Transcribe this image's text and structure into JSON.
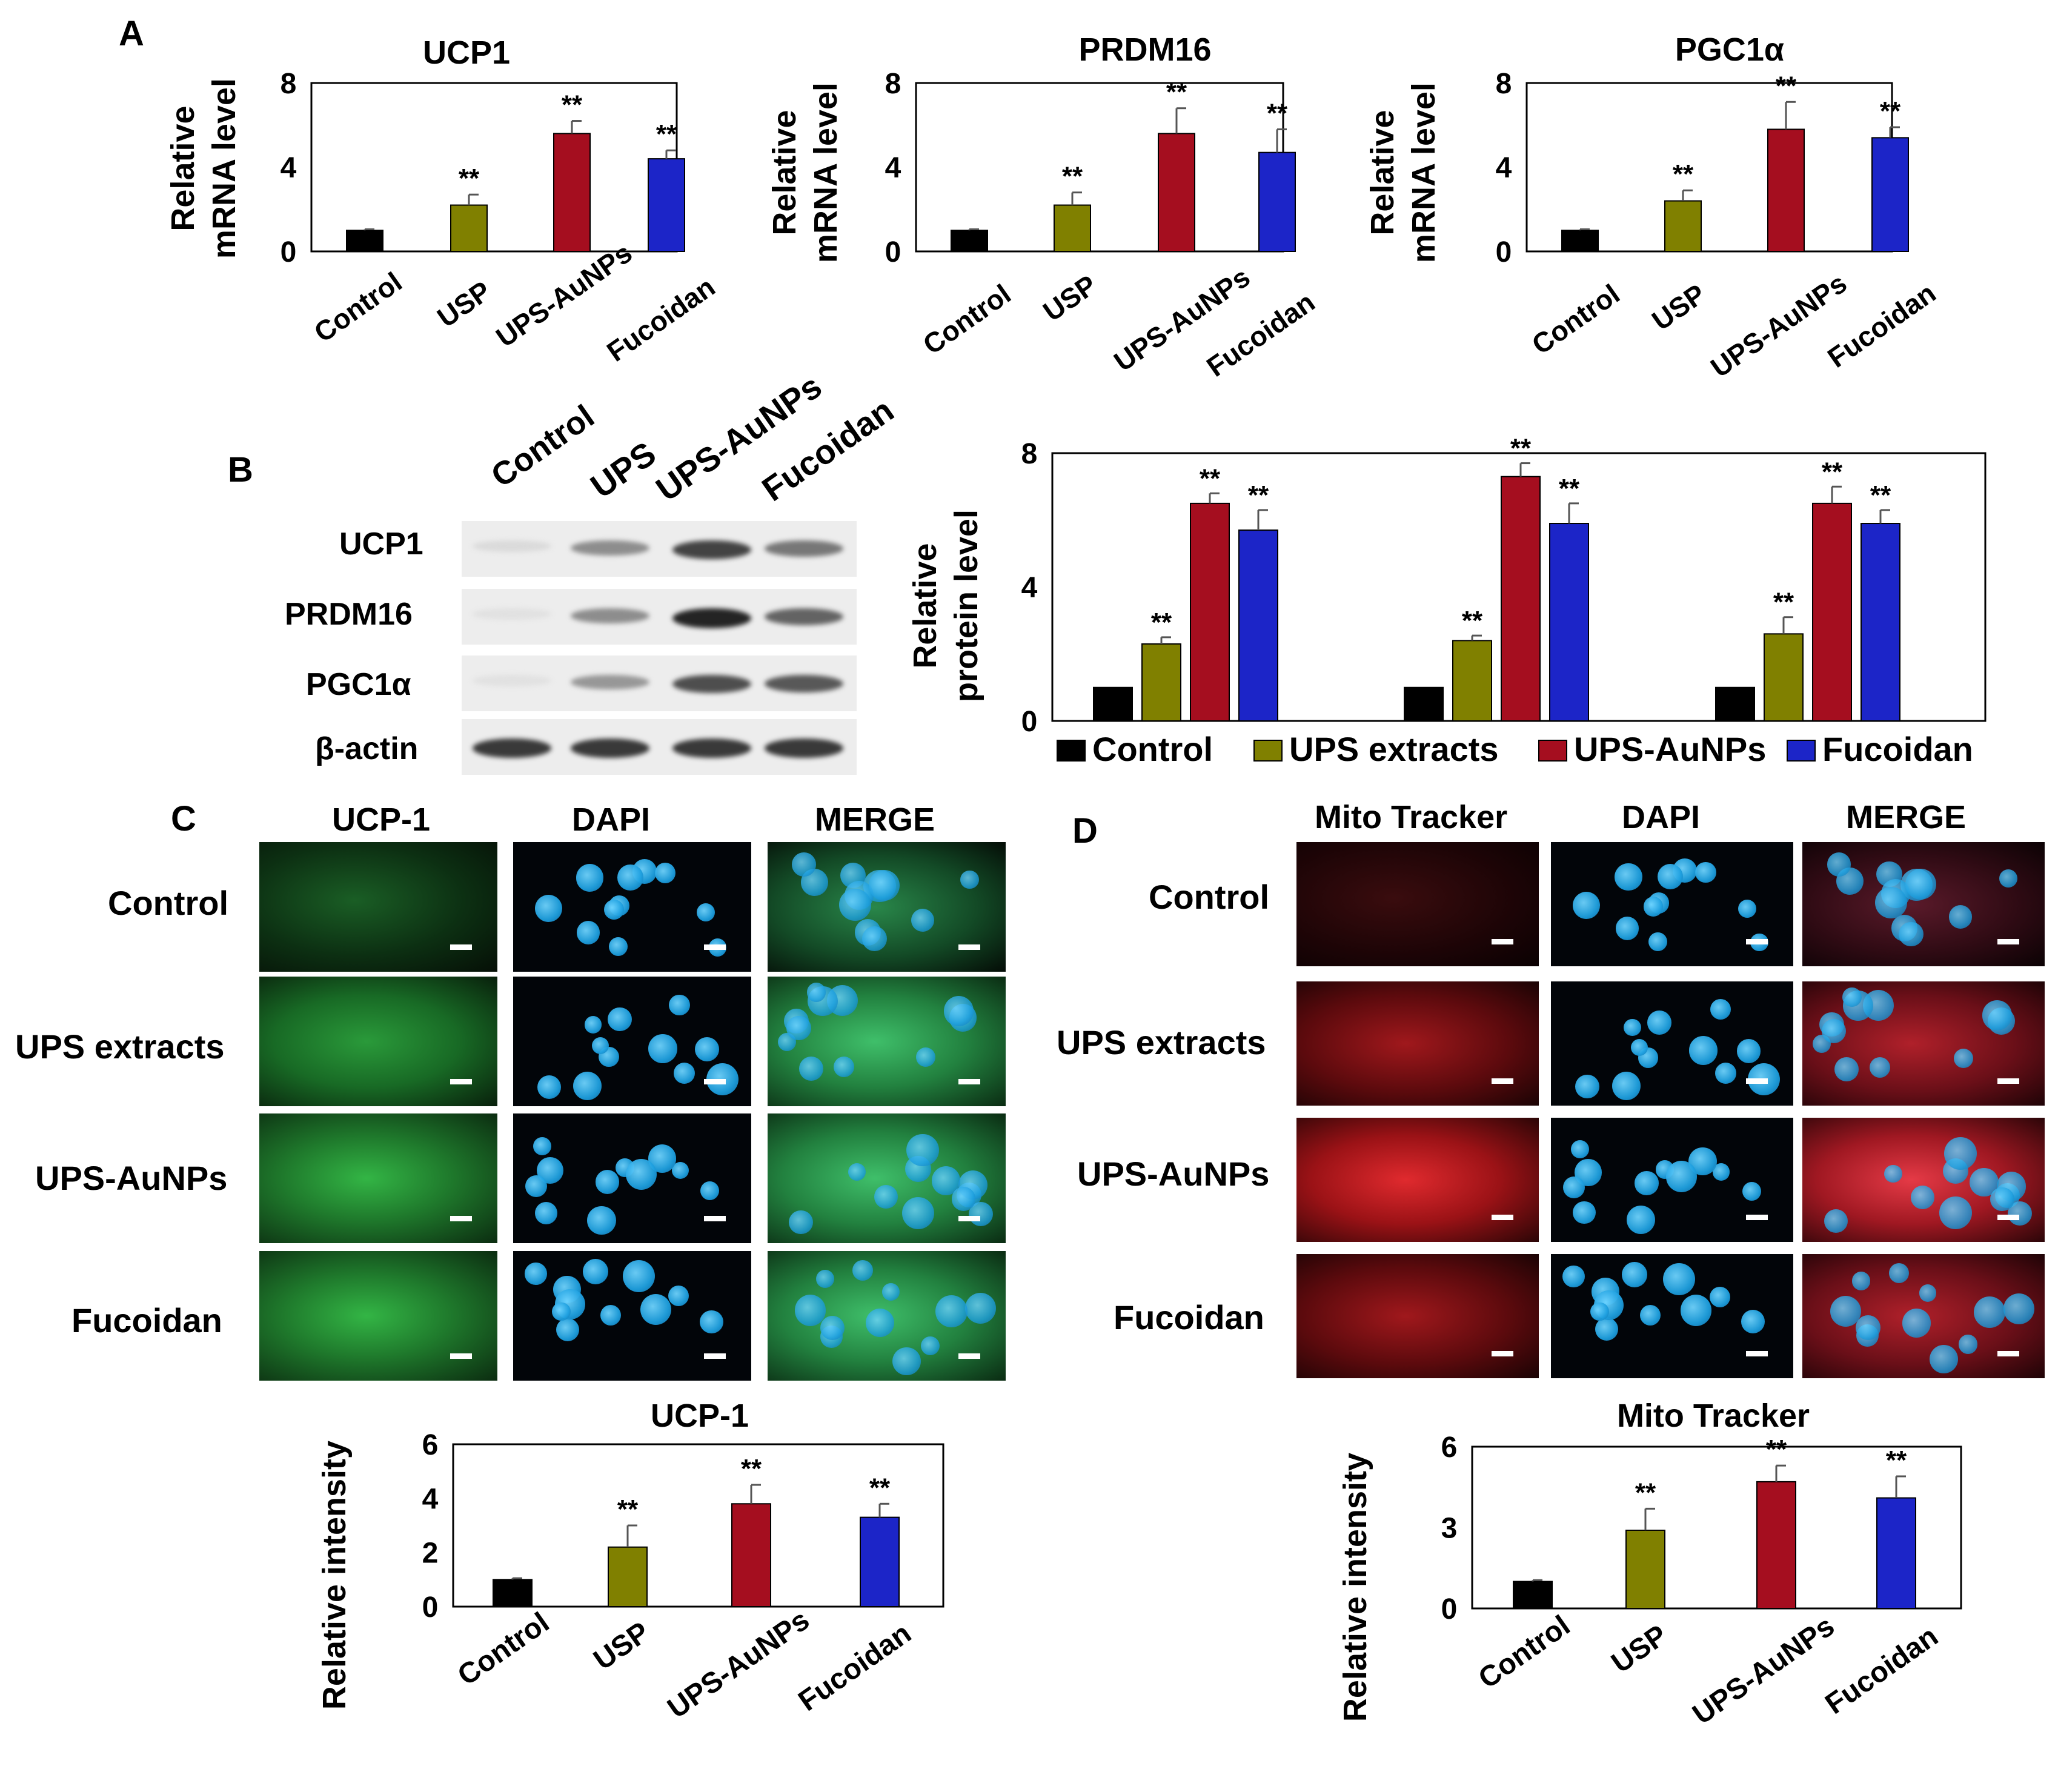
{
  "panels": {
    "A": "A",
    "B": "B",
    "C": "C",
    "D": "D"
  },
  "colors": {
    "Control": "#000000",
    "USP": "#808000",
    "UPS-AuNPs": "#a50e1f",
    "Fucoidan": "#1c25c8",
    "green_channel": "#2fae42",
    "blue_channel": "#1ea0e0",
    "red_channel": "#d0181e"
  },
  "blot": {
    "lanes": [
      "Control",
      "UPS",
      "UPS-AuNPs",
      "Fucoidan"
    ],
    "rows": [
      "UCP1",
      "PRDM16",
      "PGC1α",
      "β-actin"
    ],
    "band_intensity": [
      [
        0.08,
        0.45,
        0.8,
        0.55
      ],
      [
        0.05,
        0.45,
        0.95,
        0.65
      ],
      [
        0.05,
        0.4,
        0.75,
        0.7
      ],
      [
        0.85,
        0.85,
        0.85,
        0.85
      ]
    ]
  },
  "micro_C": {
    "channels": [
      "UCP-1",
      "DAPI",
      "MERGE"
    ],
    "rows": [
      "Control",
      "UPS extracts",
      "UPS-AuNPs",
      "Fucoidan"
    ]
  },
  "micro_D": {
    "channels": [
      "Mito Tracker",
      "DAPI",
      "MERGE"
    ],
    "rows": [
      "Control",
      "UPS extracts",
      "UPS-AuNPs",
      "Fucoidan"
    ]
  },
  "chart_data": [
    {
      "id": "A1",
      "type": "bar",
      "title": "UCP1",
      "ylabel": [
        "Relative",
        "mRNA level"
      ],
      "categories": [
        "Control",
        "USP",
        "UPS-AuNPs",
        "Fucoidan"
      ],
      "values": [
        1.0,
        2.2,
        5.6,
        4.4
      ],
      "errors": [
        0.05,
        0.5,
        0.6,
        0.4
      ],
      "significance": [
        "",
        "**",
        "**",
        "**"
      ],
      "ylim": [
        0,
        8
      ],
      "yticks": [
        0,
        4,
        8
      ]
    },
    {
      "id": "A2",
      "type": "bar",
      "title": "PRDM16",
      "ylabel": [
        "Relative",
        "mRNA level"
      ],
      "categories": [
        "Control",
        "USP",
        "UPS-AuNPs",
        "Fucoidan"
      ],
      "values": [
        1.0,
        2.2,
        5.6,
        4.7
      ],
      "errors": [
        0.05,
        0.6,
        1.2,
        1.1
      ],
      "significance": [
        "",
        "**",
        "**",
        "**"
      ],
      "ylim": [
        0,
        8
      ],
      "yticks": [
        0,
        4,
        8
      ]
    },
    {
      "id": "A3",
      "type": "bar",
      "title": "PGC1α",
      "ylabel": [
        "Relative",
        "mRNA level"
      ],
      "categories": [
        "Control",
        "USP",
        "UPS-AuNPs",
        "Fucoidan"
      ],
      "values": [
        1.0,
        2.4,
        5.8,
        5.4
      ],
      "errors": [
        0.05,
        0.5,
        1.3,
        0.5
      ],
      "significance": [
        "",
        "**",
        "**",
        "**"
      ],
      "ylim": [
        0,
        8
      ],
      "yticks": [
        0,
        4,
        8
      ]
    },
    {
      "id": "B",
      "type": "bar",
      "ylabel": [
        "Relative",
        "protein level"
      ],
      "groups": [
        "UCP1",
        "PRDM16",
        "PGC1α"
      ],
      "series": [
        {
          "name": "Control",
          "values": [
            1.0,
            1.0,
            1.0
          ],
          "errors": [
            0.0,
            0.0,
            0.0
          ],
          "significance": [
            "",
            "",
            ""
          ]
        },
        {
          "name": "UPS extracts",
          "values": [
            2.3,
            2.4,
            2.6
          ],
          "errors": [
            0.2,
            0.15,
            0.5
          ],
          "significance": [
            "**",
            "**",
            "**"
          ]
        },
        {
          "name": "UPS-AuNPs",
          "values": [
            6.5,
            7.3,
            6.5
          ],
          "errors": [
            0.3,
            0.4,
            0.5
          ],
          "significance": [
            "**",
            "**",
            "**"
          ]
        },
        {
          "name": "Fucoidan",
          "values": [
            5.7,
            5.9,
            5.9
          ],
          "errors": [
            0.6,
            0.6,
            0.4
          ],
          "significance": [
            "**",
            "**",
            "**"
          ]
        }
      ],
      "ylim": [
        0,
        8
      ],
      "yticks": [
        0,
        4,
        8
      ]
    },
    {
      "id": "C",
      "type": "bar",
      "title": "UCP-1",
      "ylabel": [
        "Relative intensity"
      ],
      "categories": [
        "Control",
        "USP",
        "UPS-AuNPs",
        "Fucoidan"
      ],
      "values": [
        1.0,
        2.2,
        3.8,
        3.3
      ],
      "errors": [
        0.05,
        0.8,
        0.7,
        0.5
      ],
      "significance": [
        "",
        "**",
        "**",
        "**"
      ],
      "ylim": [
        0,
        6
      ],
      "yticks": [
        0,
        2,
        4,
        6
      ]
    },
    {
      "id": "D",
      "type": "bar",
      "title": "Mito Tracker",
      "ylabel": [
        "Relative intensity"
      ],
      "categories": [
        "Control",
        "USP",
        "UPS-AuNPs",
        "Fucoidan"
      ],
      "values": [
        1.0,
        2.9,
        4.7,
        4.1
      ],
      "errors": [
        0.05,
        0.8,
        0.6,
        0.8
      ],
      "significance": [
        "",
        "**",
        "**",
        "**"
      ],
      "ylim": [
        0,
        6
      ],
      "yticks": [
        0,
        3,
        6
      ]
    }
  ]
}
